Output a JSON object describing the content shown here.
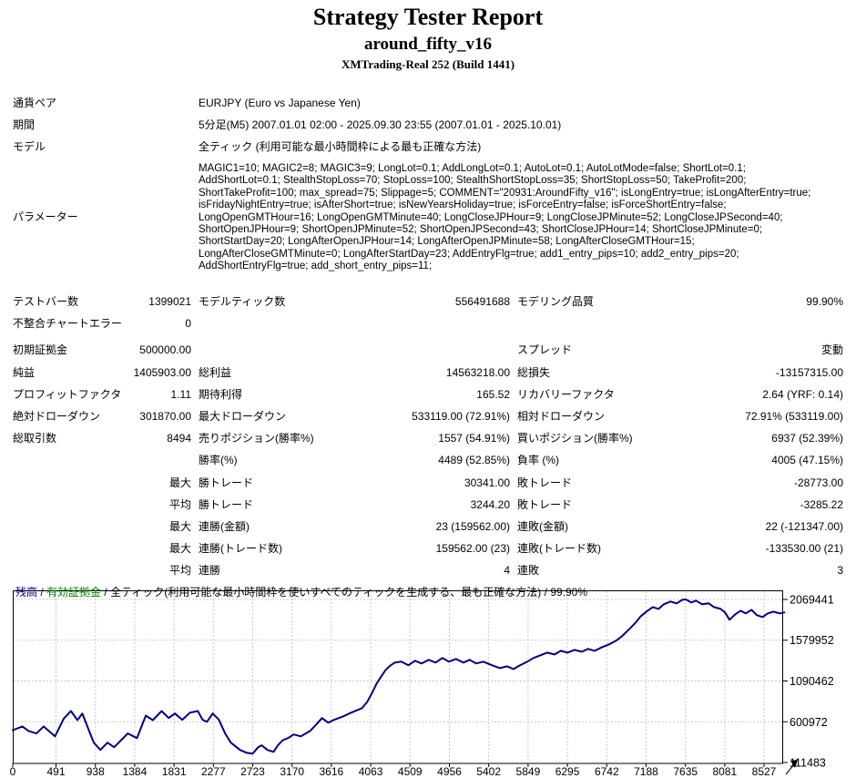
{
  "header": {
    "title": "Strategy Tester Report",
    "ea_name": "around_fifty_v16",
    "server": "XMTrading-Real 252 (Build 1441)"
  },
  "info": {
    "rows": [
      {
        "label": "通貨ペア",
        "value": "EURJPY (Euro vs Japanese Yen)"
      },
      {
        "label": "期間",
        "value": "5分足(M5) 2007.01.01 02:00 - 2025.09.30 23:55 (2007.01.01 - 2025.10.01)"
      },
      {
        "label": "モデル",
        "value": "全ティック (利用可能な最小時間枠による最も正確な方法)"
      }
    ],
    "params_label": "パラメーター",
    "params_lines": [
      "MAGIC1=10; MAGIC2=8; MAGIC3=9; LongLot=0.1; AddLongLot=0.1; AutoLot=0.1; AutoLotMode=false; ShortLot=0.1;",
      "AddShortLot=0.1; StealthStopLoss=70; StopLoss=100; StealthShortStopLoss=35; ShortStopLoss=50; TakeProfit=200;",
      "ShortTakeProfit=100; max_spread=75; Slippage=5; COMMENT=\"20931:AroundFifty_v16\"; isLongEntry=true; isLongAfterEntry=true;",
      "isFridayNightEntry=true; isAfterShort=true; isNewYearsHoliday=true; isForceEntry=false; isForceShortEntry=false;",
      "LongOpenGMTHour=16; LongOpenGMTMinute=40; LongCloseJPHour=9; LongCloseJPMinute=52; LongCloseJPSecond=40;",
      "ShortOpenJPHour=9; ShortOpenJPMinute=52; ShortOpenJPSecond=43; ShortCloseJPHour=14; ShortCloseJPMinute=0;",
      "ShortStartDay=20; LongAfterOpenJPHour=14; LongAfterOpenJPMinute=58; LongAfterCloseGMTHour=15;",
      "LongAfterCloseGMTMinute=0; LongAfterStartDay=23; AddEntryFlg=true; add1_entry_pips=10; add2_entry_pips=20;",
      "AddShortEntryFlg=true; add_short_entry_pips=11;"
    ]
  },
  "stats": {
    "rows": [
      {
        "c1": "テストバー数",
        "c2": "1399021",
        "c3": "モデルティック数",
        "c4": "556491688",
        "c5": "モデリング品質",
        "c6": "99.90%"
      },
      {
        "c1": "不整合チャートエラー",
        "c2": "0",
        "c3": "",
        "c4": "",
        "c5": "",
        "c6": ""
      },
      {
        "c1": "初期証拠金",
        "c2": "500000.00",
        "c3": "",
        "c4": "",
        "c5": "スプレッド",
        "c6": "変動"
      },
      {
        "c1": "純益",
        "c2": "1405903.00",
        "c3": "総利益",
        "c4": "14563218.00",
        "c5": "総損失",
        "c6": "-13157315.00"
      },
      {
        "c1": "プロフィットファクタ",
        "c2": "1.11",
        "c3": "期待利得",
        "c4": "165.52",
        "c5": "リカバリーファクタ",
        "c6": "2.64 (YRF: 0.14)"
      },
      {
        "c1": "絶対ドローダウン",
        "c2": "301870.00",
        "c3": "最大ドローダウン",
        "c4": "533119.00 (72.91%)",
        "c5": "相対ドローダウン",
        "c6": "72.91% (533119.00)"
      },
      {
        "c1": "総取引数",
        "c2": "8494",
        "c3": "売りポジション(勝率%)",
        "c4": "1557 (54.91%)",
        "c5": "買いポジション(勝率%)",
        "c6": "6937 (52.39%)"
      },
      {
        "c1": "",
        "c2": "",
        "c3": "勝率(%)",
        "c4": "4489 (52.85%)",
        "c5": "負率 (%)",
        "c6": "4005 (47.15%)"
      },
      {
        "c1": "",
        "c2": "最大",
        "c3": "勝トレード",
        "c4": "30341.00",
        "c5": "敗トレード",
        "c6": "-28773.00"
      },
      {
        "c1": "",
        "c2": "平均",
        "c3": "勝トレード",
        "c4": "3244.20",
        "c5": "敗トレード",
        "c6": "-3285.22"
      },
      {
        "c1": "",
        "c2": "最大",
        "c3": "連勝(金額)",
        "c4": "23 (159562.00)",
        "c5": "連敗(金額)",
        "c6": "22 (-121347.00)"
      },
      {
        "c1": "",
        "c2": "最大",
        "c3": "連勝(トレード数)",
        "c4": "159562.00 (23)",
        "c5": "連敗(トレード数)",
        "c6": "-133530.00 (21)"
      },
      {
        "c1": "",
        "c2": "平均",
        "c3": "連勝",
        "c4": "4",
        "c5": "連敗",
        "c6": "3"
      }
    ]
  },
  "chart_data": {
    "type": "line",
    "title": "",
    "xlabel": "",
    "ylabel": "",
    "legend": {
      "balance_label": "残高",
      "equity_label": "有効証拠金",
      "model_label": "全ティック(利用可能な最小時間枠を使いすべてのティックを生成する、最も正確な方法)",
      "quality": "99.90%",
      "separator": " / ",
      "balance_color": "#000080",
      "equity_color": "#008000"
    },
    "grid": "dashed",
    "line_color": "#000080",
    "grid_color": "#c8c8c8",
    "x_ticks": [
      0,
      491,
      938,
      1384,
      1831,
      2277,
      2723,
      3170,
      3616,
      4063,
      4509,
      4956,
      5402,
      5849,
      6295,
      6742,
      7188,
      7635,
      8081,
      8527
    ],
    "y_ticks": [
      111483,
      600972,
      1090462,
      1579952,
      2069441
    ],
    "x_range": [
      0,
      8757
    ],
    "y_range": [
      111483,
      2069441
    ],
    "series": [
      {
        "name": "残高",
        "color": "#000080",
        "points": [
          [
            0,
            500000
          ],
          [
            110,
            545000
          ],
          [
            180,
            490000
          ],
          [
            270,
            460000
          ],
          [
            350,
            545000
          ],
          [
            420,
            480000
          ],
          [
            480,
            425000
          ],
          [
            580,
            640000
          ],
          [
            660,
            730000
          ],
          [
            735,
            620000
          ],
          [
            790,
            700000
          ],
          [
            860,
            510000
          ],
          [
            920,
            350000
          ],
          [
            995,
            262000
          ],
          [
            1075,
            350000
          ],
          [
            1150,
            295000
          ],
          [
            1230,
            380000
          ],
          [
            1305,
            460000
          ],
          [
            1410,
            405000
          ],
          [
            1510,
            675000
          ],
          [
            1590,
            620000
          ],
          [
            1690,
            730000
          ],
          [
            1770,
            645000
          ],
          [
            1840,
            700000
          ],
          [
            1925,
            625000
          ],
          [
            2010,
            710000
          ],
          [
            2100,
            730000
          ],
          [
            2155,
            625000
          ],
          [
            2205,
            600000
          ],
          [
            2270,
            700000
          ],
          [
            2340,
            625000
          ],
          [
            2410,
            460000
          ],
          [
            2475,
            350000
          ],
          [
            2580,
            262000
          ],
          [
            2650,
            230000
          ],
          [
            2722,
            218000
          ],
          [
            2785,
            295000
          ],
          [
            2825,
            318000
          ],
          [
            2890,
            262000
          ],
          [
            2960,
            240000
          ],
          [
            3010,
            318000
          ],
          [
            3065,
            380000
          ],
          [
            3125,
            405000
          ],
          [
            3190,
            448000
          ],
          [
            3270,
            425000
          ],
          [
            3375,
            490000
          ],
          [
            3445,
            568000
          ],
          [
            3510,
            645000
          ],
          [
            3580,
            590000
          ],
          [
            3645,
            623000
          ],
          [
            3755,
            667000
          ],
          [
            3820,
            700000
          ],
          [
            3890,
            732000
          ],
          [
            3965,
            765000
          ],
          [
            4025,
            842000
          ],
          [
            4080,
            950000
          ],
          [
            4130,
            1060000
          ],
          [
            4185,
            1150000
          ],
          [
            4235,
            1225000
          ],
          [
            4290,
            1280000
          ],
          [
            4340,
            1312000
          ],
          [
            4410,
            1323000
          ],
          [
            4490,
            1279000
          ],
          [
            4565,
            1333000
          ],
          [
            4640,
            1300000
          ],
          [
            4720,
            1344000
          ],
          [
            4800,
            1311000
          ],
          [
            4875,
            1366000
          ],
          [
            4950,
            1322000
          ],
          [
            5030,
            1355000
          ],
          [
            5115,
            1311000
          ],
          [
            5185,
            1344000
          ],
          [
            5260,
            1300000
          ],
          [
            5340,
            1322000
          ],
          [
            5445,
            1278000
          ],
          [
            5530,
            1245000
          ],
          [
            5610,
            1267000
          ],
          [
            5685,
            1234000
          ],
          [
            5755,
            1278000
          ],
          [
            5840,
            1322000
          ],
          [
            5910,
            1366000
          ],
          [
            5985,
            1398000
          ],
          [
            6065,
            1431000
          ],
          [
            6150,
            1409000
          ],
          [
            6220,
            1453000
          ],
          [
            6295,
            1431000
          ],
          [
            6375,
            1464000
          ],
          [
            6460,
            1442000
          ],
          [
            6530,
            1475000
          ],
          [
            6605,
            1453000
          ],
          [
            6690,
            1497000
          ],
          [
            6770,
            1530000
          ],
          [
            6845,
            1573000
          ],
          [
            6915,
            1628000
          ],
          [
            7000,
            1716000
          ],
          [
            7070,
            1792000
          ],
          [
            7130,
            1869000
          ],
          [
            7205,
            1934000
          ],
          [
            7265,
            1978000
          ],
          [
            7330,
            1956000
          ],
          [
            7390,
            2011000
          ],
          [
            7465,
            2044000
          ],
          [
            7535,
            2022000
          ],
          [
            7600,
            2065000
          ],
          [
            7640,
            2069441
          ],
          [
            7700,
            2033000
          ],
          [
            7755,
            2055000
          ],
          [
            7825,
            2011000
          ],
          [
            7900,
            2022000
          ],
          [
            7960,
            1978000
          ],
          [
            8035,
            1956000
          ],
          [
            8085,
            1913000
          ],
          [
            8135,
            1825000
          ],
          [
            8200,
            1891000
          ],
          [
            8260,
            1934000
          ],
          [
            8320,
            1902000
          ],
          [
            8385,
            1945000
          ],
          [
            8445,
            1880000
          ],
          [
            8510,
            1858000
          ],
          [
            8570,
            1902000
          ],
          [
            8635,
            1923000
          ],
          [
            8705,
            1902000
          ],
          [
            8757,
            1913000
          ]
        ]
      }
    ]
  }
}
